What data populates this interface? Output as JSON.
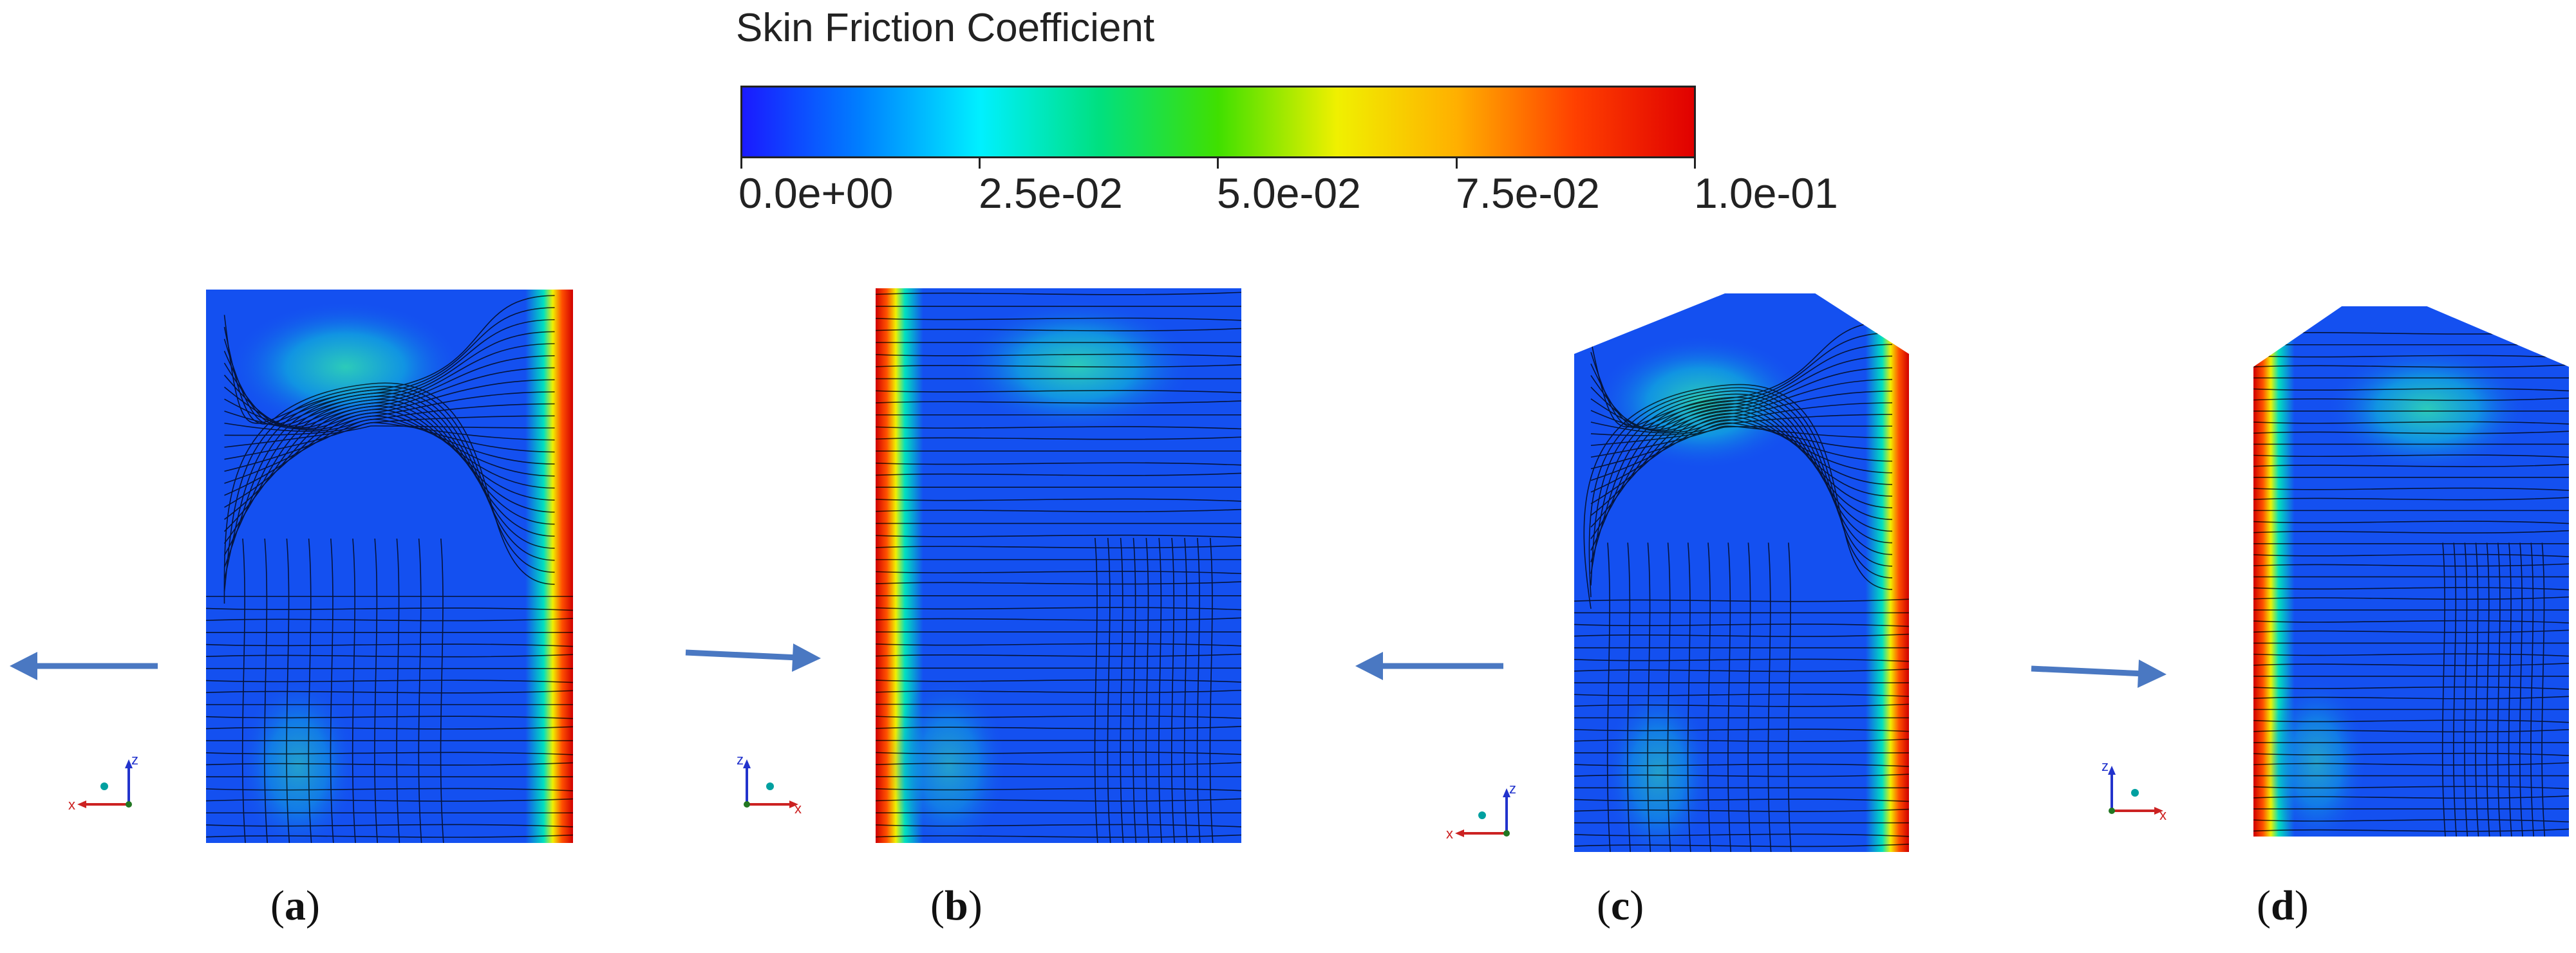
{
  "legend": {
    "title": "Skin Friction Coefficient",
    "ticks": [
      "0.0e+00",
      "2.5e-02",
      "5.0e-02",
      "7.5e-02",
      "1.0e-01"
    ],
    "min": 0.0,
    "max": 0.1,
    "colormap": [
      "#1a1aff",
      "#0080ff",
      "#00f0ff",
      "#00e080",
      "#40e000",
      "#f0f000",
      "#ffb000",
      "#ff4000",
      "#e00000"
    ]
  },
  "axis_labels": {
    "z": "z",
    "x": "x"
  },
  "panels": [
    {
      "id": "a",
      "caption_letter": "a",
      "shape": "rect",
      "flow_direction": "left",
      "high_friction_edge": "right"
    },
    {
      "id": "b",
      "caption_letter": "b",
      "shape": "rect",
      "flow_direction": "right",
      "high_friction_edge": "left"
    },
    {
      "id": "c",
      "caption_letter": "c",
      "shape": "pointed",
      "flow_direction": "left",
      "high_friction_edge": "right"
    },
    {
      "id": "d",
      "caption_letter": "d",
      "shape": "pointed",
      "flow_direction": "right",
      "high_friction_edge": "left"
    }
  ],
  "colors": {
    "arrow": "#4a78c2",
    "base_blue": "#1450f0",
    "streamline": "#000000",
    "axis_z": "#2233cc",
    "axis_x": "#cc2222",
    "axis_y": "#00a0a0"
  }
}
